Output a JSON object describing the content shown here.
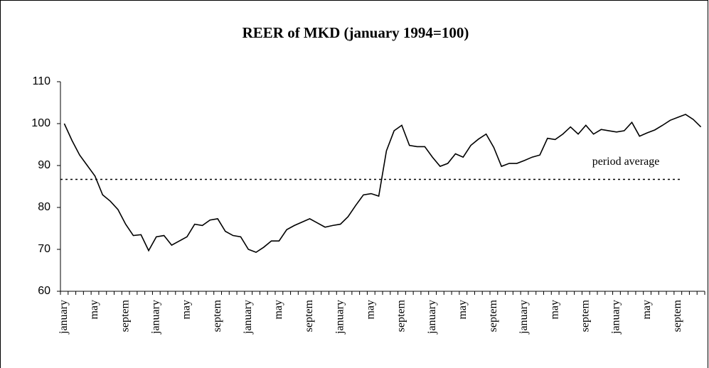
{
  "chart_data": {
    "type": "line",
    "title": "REER of MKD (january 1994=100)",
    "categories": [
      "january",
      null,
      null,
      null,
      "may",
      null,
      null,
      null,
      "septem",
      null,
      null,
      null,
      "january",
      null,
      null,
      null,
      "may",
      null,
      null,
      null,
      "septem",
      null,
      null,
      null,
      "january",
      null,
      null,
      null,
      "may",
      null,
      null,
      null,
      "septem",
      null,
      null,
      null,
      "january",
      null,
      null,
      null,
      "may",
      null,
      null,
      null,
      "septem",
      null,
      null,
      null,
      "january",
      null,
      null,
      null,
      "may",
      null,
      null,
      null,
      "septem",
      null,
      null,
      null,
      "january",
      null,
      null,
      null,
      "may",
      null,
      null,
      null,
      "septem",
      null,
      null,
      null,
      "january",
      null,
      null,
      null,
      "may",
      null,
      null,
      null,
      "septem",
      null,
      null,
      null
    ],
    "series": [
      {
        "color": "#000000",
        "values": [
          100,
          96,
          92.5,
          90,
          87.5,
          83,
          81.5,
          79.5,
          76,
          73.3,
          73.5,
          69.7,
          73,
          73.3,
          71,
          72,
          73,
          76,
          75.7,
          77,
          77.3,
          74.3,
          73.3,
          73,
          70,
          69.3,
          70.5,
          72,
          72,
          74.7,
          75.7,
          76.5,
          77.3,
          76.3,
          75.3,
          75.7,
          76,
          77.8,
          80.5,
          83,
          83.3,
          82.7,
          93.5,
          98.3,
          99.6,
          94.8,
          94.5,
          94.5,
          92,
          89.8,
          90.5,
          92.8,
          92,
          94.8,
          96.3,
          97.5,
          94.3,
          89.8,
          90.5,
          90.5,
          91.2,
          92,
          92.5,
          96.5,
          96.2,
          97.5,
          99.2,
          97.5,
          99.6,
          97.5,
          98.6,
          98.3,
          98,
          98.3,
          100.3,
          97,
          97.8,
          98.5,
          99.6,
          100.8,
          101.5,
          102.2,
          101,
          99.2
        ]
      }
    ],
    "reference_line": {
      "value": 86.7,
      "label": "period average",
      "color": "#000000"
    },
    "ylim": [
      60,
      110
    ],
    "yticks": [
      60,
      70,
      80,
      90,
      100,
      110
    ],
    "grid": false
  }
}
